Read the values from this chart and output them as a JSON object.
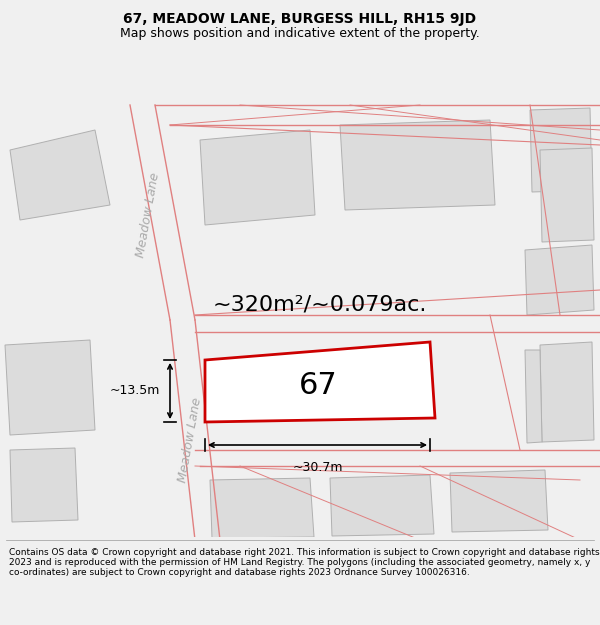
{
  "title_line1": "67, MEADOW LANE, BURGESS HILL, RH15 9JD",
  "title_line2": "Map shows position and indicative extent of the property.",
  "footer_text": "Contains OS data © Crown copyright and database right 2021. This information is subject to Crown copyright and database rights 2023 and is reproduced with the permission of HM Land Registry. The polygons (including the associated geometry, namely x, y co-ordinates) are subject to Crown copyright and database rights 2023 Ordnance Survey 100026316.",
  "area_text": "~320m²/~0.079ac.",
  "width_text": "~30.7m",
  "height_text": "~13.5m",
  "property_number": "67",
  "bg_color": "#f0f0f0",
  "map_bg": "#ffffff",
  "plot_outline_color": "#cc0000",
  "plot_fill_color": "#ffffff",
  "building_fc": "#dcdcdc",
  "building_ec": "#b0b0b0",
  "road_line_color": "#e08080",
  "road_fill_color": "#f5e8e8",
  "text_color": "#000000",
  "dim_color": "#000000",
  "lane_label_color": "#aaaaaa",
  "title_fontsize": 10,
  "subtitle_fontsize": 9,
  "footer_fontsize": 6.5,
  "area_fontsize": 16,
  "number_fontsize": 22,
  "dim_fontsize": 9,
  "lane_fontsize": 9
}
